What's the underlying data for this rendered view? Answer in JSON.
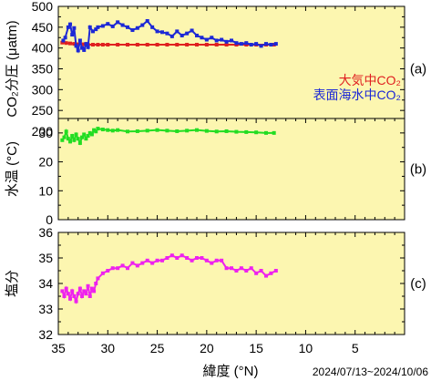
{
  "chart_data": [
    {
      "type": "scatter",
      "panel_label": "(a)",
      "ylabel": "CO₂分圧 (μatm)",
      "xlim": [
        35,
        0
      ],
      "ylim": [
        200,
        500
      ],
      "yticks": [
        "500",
        "450",
        "400",
        "350",
        "300",
        "250",
        "200"
      ],
      "yticks_values": [
        500,
        450,
        400,
        350,
        300,
        250,
        200
      ],
      "legend": [
        {
          "text": "大気中CO₂",
          "color": "#e02020"
        },
        {
          "text": "表面海水中CO₂",
          "color": "#1c28d6"
        }
      ],
      "series": [
        {
          "name": "大気中CO₂",
          "color": "#e02020",
          "x": [
            34.6,
            34.2,
            33.8,
            33.4,
            33.0,
            32.5,
            32.0,
            31.5,
            31.0,
            30.5,
            30.0,
            29.0,
            28.0,
            27.0,
            26.0,
            25.0,
            24.0,
            23.0,
            22.0,
            21.0,
            20.0,
            19.0,
            18.0,
            17.0,
            16.0,
            15.0,
            14.0,
            13.2
          ],
          "y": [
            413,
            412,
            411,
            410,
            409,
            409,
            408,
            408,
            408,
            408,
            408,
            408,
            408,
            408,
            408,
            408,
            408,
            408,
            408,
            408,
            408,
            408,
            408,
            408,
            408,
            408,
            408,
            408
          ]
        },
        {
          "name": "表面海水中CO₂",
          "color": "#1c28d6",
          "x": [
            34.5,
            34.3,
            34.0,
            33.8,
            33.6,
            33.4,
            33.2,
            33.0,
            32.8,
            32.6,
            32.4,
            32.2,
            32.0,
            31.8,
            31.5,
            31.2,
            31.0,
            30.5,
            30.0,
            29.5,
            29.0,
            28.5,
            28.0,
            27.5,
            27.0,
            26.5,
            26.0,
            25.5,
            25.0,
            24.5,
            24.0,
            23.5,
            23.0,
            22.5,
            22.0,
            21.5,
            21.0,
            20.5,
            20.0,
            19.5,
            19.0,
            18.5,
            18.0,
            17.5,
            17.0,
            16.5,
            16.0,
            15.5,
            15.0,
            14.5,
            14.0,
            13.5,
            13.0
          ],
          "y": [
            418,
            425,
            450,
            457,
            432,
            448,
            405,
            394,
            418,
            400,
            395,
            410,
            402,
            450,
            440,
            445,
            450,
            453,
            458,
            452,
            462,
            455,
            450,
            443,
            448,
            455,
            465,
            450,
            440,
            438,
            435,
            428,
            440,
            430,
            435,
            442,
            430,
            425,
            420,
            425,
            418,
            420,
            415,
            418,
            412,
            410,
            412,
            408,
            410,
            405,
            410,
            408,
            410
          ]
        }
      ]
    },
    {
      "type": "scatter",
      "panel_label": "(b)",
      "ylabel": "水温 (°C)",
      "xlim": [
        35,
        0
      ],
      "ylim": [
        0,
        35
      ],
      "yticks": [
        "30",
        "20",
        "10",
        "0"
      ],
      "yticks_values": [
        30,
        20,
        10,
        0
      ],
      "series": [
        {
          "name": "",
          "color": "#22dd22",
          "x": [
            34.6,
            34.4,
            34.2,
            34.0,
            33.8,
            33.6,
            33.4,
            33.2,
            33.0,
            32.8,
            32.6,
            32.4,
            32.2,
            32.0,
            31.8,
            31.6,
            31.4,
            31.2,
            31.0,
            30.5,
            30.0,
            29.5,
            29.0,
            28.0,
            27.0,
            26.0,
            25.0,
            24.0,
            23.0,
            22.0,
            21.0,
            20.0,
            19.0,
            18.0,
            17.0,
            16.0,
            15.0,
            14.0,
            13.2
          ],
          "y": [
            27.5,
            28.5,
            30.5,
            28.0,
            27.0,
            29.0,
            27.5,
            29.5,
            28.0,
            26.5,
            28.5,
            29.5,
            28.0,
            29.0,
            30.0,
            29.5,
            31.0,
            30.5,
            31.5,
            31.2,
            31.0,
            30.8,
            31.0,
            30.5,
            30.6,
            30.8,
            31.0,
            30.8,
            30.6,
            30.8,
            31.0,
            30.7,
            30.5,
            30.6,
            30.4,
            30.3,
            30.2,
            30.0,
            30.0
          ]
        }
      ]
    },
    {
      "type": "scatter",
      "panel_label": "(c)",
      "ylabel": "塩分",
      "xlabel": "緯度 (°N)",
      "xlim": [
        35,
        0
      ],
      "ylim": [
        32,
        36
      ],
      "yticks": [
        "36",
        "35",
        "34",
        "33",
        "32"
      ],
      "yticks_values": [
        36,
        35,
        34,
        33,
        32
      ],
      "xticks": [
        "35",
        "30",
        "25",
        "20",
        "15",
        "10",
        "5"
      ],
      "xticks_values": [
        35,
        30,
        25,
        20,
        15,
        10,
        5
      ],
      "series": [
        {
          "name": "",
          "color": "#ee22ee",
          "x": [
            34.6,
            34.4,
            34.2,
            34.0,
            33.8,
            33.6,
            33.4,
            33.2,
            33.0,
            32.8,
            32.6,
            32.4,
            32.2,
            32.0,
            31.8,
            31.6,
            31.4,
            31.2,
            31.0,
            30.5,
            30.0,
            29.5,
            29.0,
            28.5,
            28.0,
            27.5,
            27.0,
            26.5,
            26.0,
            25.5,
            25.0,
            24.5,
            24.0,
            23.5,
            23.0,
            22.5,
            22.0,
            21.5,
            21.0,
            20.5,
            20.0,
            19.5,
            19.0,
            18.5,
            18.0,
            17.5,
            17.0,
            16.5,
            16.0,
            15.5,
            15.0,
            14.5,
            14.0,
            13.5,
            13.0
          ],
          "y": [
            33.7,
            33.5,
            33.8,
            33.6,
            33.4,
            33.7,
            33.5,
            33.3,
            33.6,
            33.8,
            33.5,
            33.7,
            33.6,
            33.9,
            33.5,
            33.8,
            33.7,
            34.0,
            34.2,
            34.4,
            34.5,
            34.6,
            34.6,
            34.7,
            34.6,
            34.8,
            34.7,
            34.8,
            34.9,
            34.8,
            34.9,
            34.9,
            35.0,
            35.1,
            35.0,
            35.1,
            35.0,
            34.9,
            35.0,
            35.0,
            34.9,
            34.8,
            34.9,
            34.9,
            34.6,
            34.6,
            34.5,
            34.6,
            34.5,
            34.6,
            34.4,
            34.5,
            34.3,
            34.4,
            34.5
          ]
        }
      ]
    }
  ],
  "date_range": "2024/07/13~2024/10/06"
}
